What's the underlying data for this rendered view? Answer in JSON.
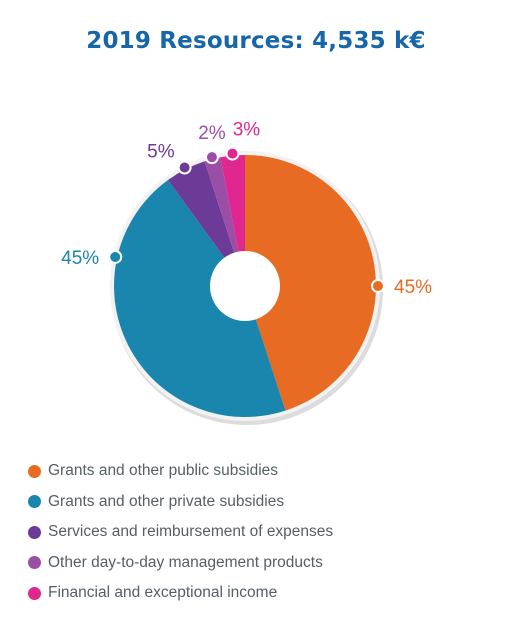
{
  "chart_data": {
    "type": "pie",
    "title": "2019 Resources: 4,535 k€",
    "series": [
      {
        "name": "Grants and other public subsidies",
        "value": 45,
        "label": "45%",
        "color": "#e86b23"
      },
      {
        "name": "Grants and other private subsidies",
        "value": 45,
        "label": "45%",
        "color": "#1a86ad"
      },
      {
        "name": "Services and reimbursement of expenses",
        "value": 5,
        "label": "5%",
        "color": "#6c3a97"
      },
      {
        "name": "Other day-to-day management products",
        "value": 2,
        "label": "2%",
        "color": "#9c4da6"
      },
      {
        "name": "Financial and exceptional income",
        "value": 3,
        "label": "3%",
        "color": "#e0278f"
      }
    ],
    "legend_position": "bottom"
  }
}
